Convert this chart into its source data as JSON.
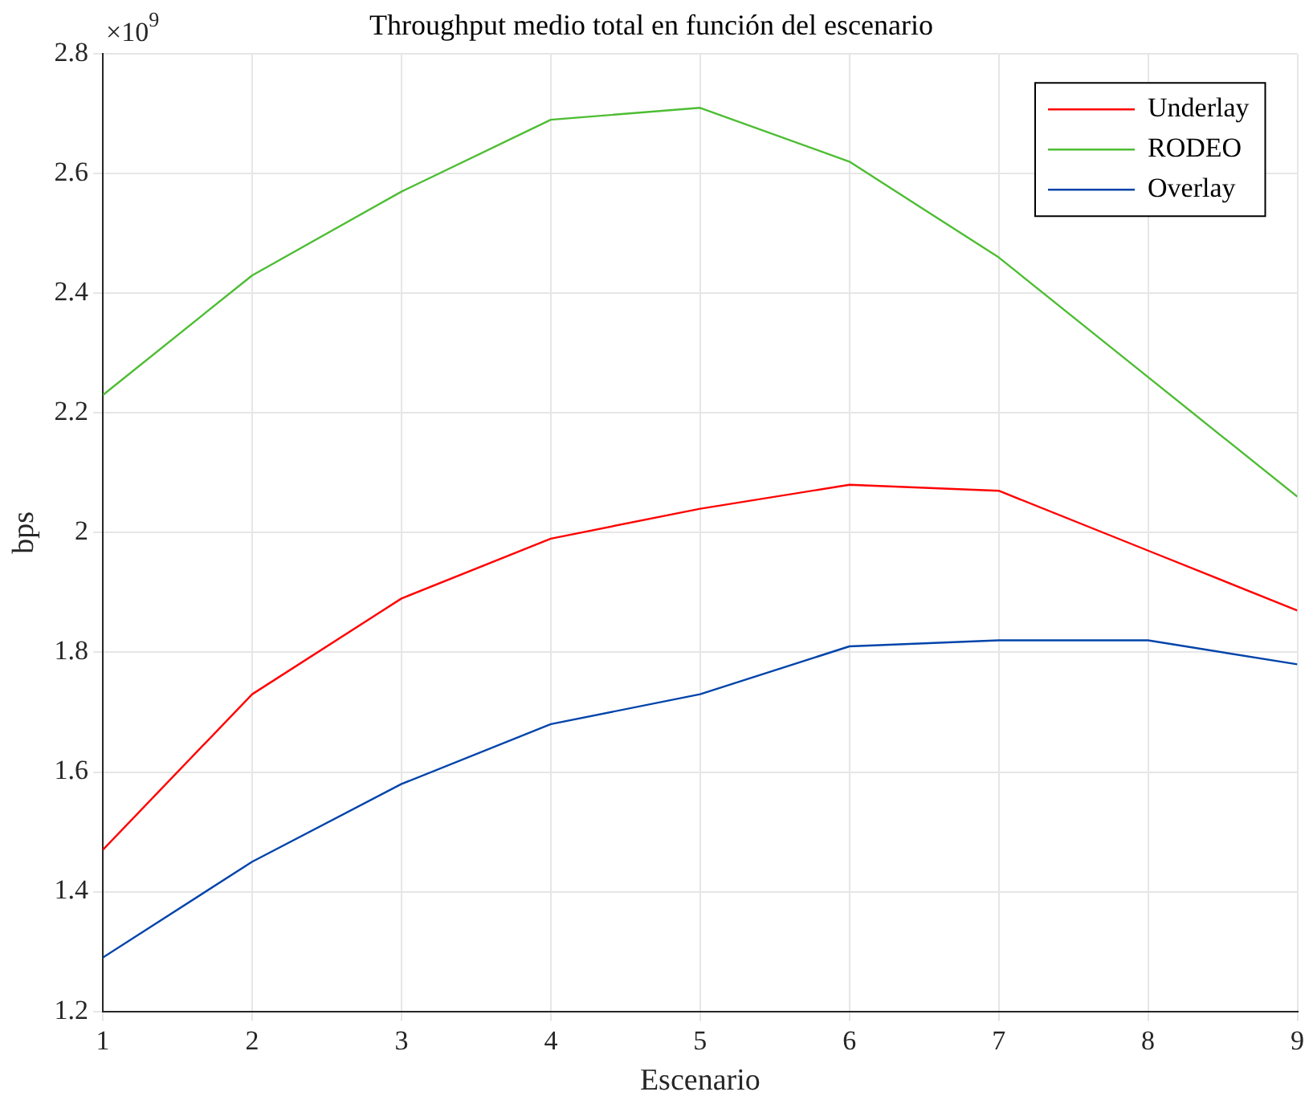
{
  "chart_data": {
    "type": "line",
    "title": "Throughput medio total en función del escenario",
    "xlabel": "Escenario",
    "ylabel": "bps",
    "x": [
      1,
      2,
      3,
      4,
      5,
      6,
      7,
      8,
      9
    ],
    "series": [
      {
        "name": "Underlay",
        "color": "#ff0000",
        "values": [
          1.47,
          1.73,
          1.89,
          1.99,
          2.04,
          2.08,
          2.07,
          1.97,
          1.87
        ]
      },
      {
        "name": "RODEO",
        "color": "#4dbd33",
        "values": [
          2.23,
          2.43,
          2.57,
          2.69,
          2.71,
          2.62,
          2.46,
          2.26,
          2.06
        ]
      },
      {
        "name": "Overlay",
        "color": "#0044aa",
        "values": [
          1.29,
          1.45,
          1.58,
          1.68,
          1.73,
          1.81,
          1.82,
          1.82,
          1.78
        ]
      }
    ],
    "xlim": [
      1,
      9
    ],
    "xticks": [
      1,
      2,
      3,
      4,
      5,
      6,
      7,
      8,
      9
    ],
    "ylim": [
      1.2,
      2.8
    ],
    "yticks": [
      1.2,
      1.4,
      1.6,
      1.8,
      2,
      2.2,
      2.4,
      2.6,
      2.8
    ],
    "annotations": [
      "×10$^{9}$"
    ],
    "grid": true,
    "legend": "top right",
    "marker": "none",
    "line_style": "solid"
  }
}
